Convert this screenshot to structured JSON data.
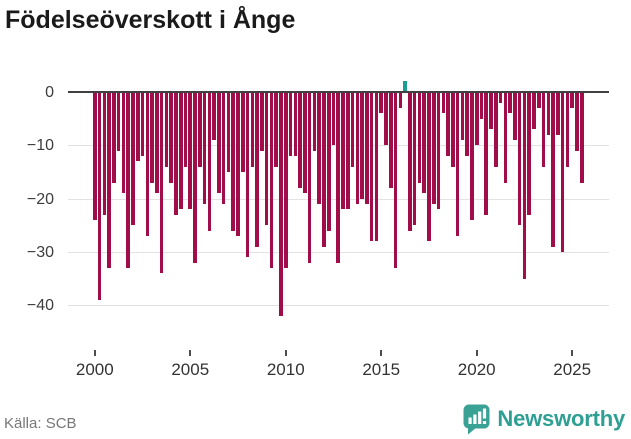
{
  "header": {
    "title": "Födelseöverskott i Ånge"
  },
  "footer": {
    "source": "Källa: SCB",
    "brand": "Newsworthy"
  },
  "colors": {
    "negative_bar": "#a00d49",
    "positive_bar": "#1a9e93",
    "logo_teal": "#3aa295",
    "brand_text": "#2d9f93",
    "gridline": "#e2e2e2",
    "zero_line": "#404040",
    "axis_text": "#3d3d3d"
  },
  "chart_data": {
    "type": "bar",
    "title": "Födelseöverskott i Ånge",
    "frequency": "quarterly",
    "start_period": "2000Q1",
    "end_period": "2025Q3",
    "xlabel": "",
    "ylabel": "",
    "grid": true,
    "ylim": [
      3.5,
      -44
    ],
    "x_ticks": [
      2000,
      2005,
      2010,
      2015,
      2020,
      2025
    ],
    "x_tick_labels": [
      "2000",
      "2005",
      "2010",
      "2015",
      "2020",
      "2025"
    ],
    "y_ticks": [
      0,
      -10,
      -20,
      -30,
      -40
    ],
    "y_tick_labels": [
      "0",
      "−10",
      "−20",
      "−30",
      "−40"
    ],
    "negative_color": "#a00d49",
    "positive_color": "#1a9e93",
    "categories": [
      "2000Q1",
      "2000Q2",
      "2000Q3",
      "2000Q4",
      "2001Q1",
      "2001Q2",
      "2001Q3",
      "2001Q4",
      "2002Q1",
      "2002Q2",
      "2002Q3",
      "2002Q4",
      "2003Q1",
      "2003Q2",
      "2003Q3",
      "2003Q4",
      "2004Q1",
      "2004Q2",
      "2004Q3",
      "2004Q4",
      "2005Q1",
      "2005Q2",
      "2005Q3",
      "2005Q4",
      "2006Q1",
      "2006Q2",
      "2006Q3",
      "2006Q4",
      "2007Q1",
      "2007Q2",
      "2007Q3",
      "2007Q4",
      "2008Q1",
      "2008Q2",
      "2008Q3",
      "2008Q4",
      "2009Q1",
      "2009Q2",
      "2009Q3",
      "2009Q4",
      "2010Q1",
      "2010Q2",
      "2010Q3",
      "2010Q4",
      "2011Q1",
      "2011Q2",
      "2011Q3",
      "2011Q4",
      "2012Q1",
      "2012Q2",
      "2012Q3",
      "2012Q4",
      "2013Q1",
      "2013Q2",
      "2013Q3",
      "2013Q4",
      "2014Q1",
      "2014Q2",
      "2014Q3",
      "2014Q4",
      "2015Q1",
      "2015Q2",
      "2015Q3",
      "2015Q4",
      "2016Q1",
      "2016Q2",
      "2016Q3",
      "2016Q4",
      "2017Q1",
      "2017Q2",
      "2017Q3",
      "2017Q4",
      "2018Q1",
      "2018Q2",
      "2018Q3",
      "2018Q4",
      "2019Q1",
      "2019Q2",
      "2019Q3",
      "2019Q4",
      "2020Q1",
      "2020Q2",
      "2020Q3",
      "2020Q4",
      "2021Q1",
      "2021Q2",
      "2021Q3",
      "2021Q4",
      "2022Q1",
      "2022Q2",
      "2022Q3",
      "2022Q4",
      "2023Q1",
      "2023Q2",
      "2023Q3",
      "2023Q4",
      "2024Q1",
      "2024Q2",
      "2024Q3",
      "2024Q4",
      "2025Q1",
      "2025Q2",
      "2025Q3"
    ],
    "values": [
      -24,
      -39,
      -23,
      -33,
      -17,
      -11,
      -19,
      -33,
      -25,
      -13,
      -12,
      -27,
      -17,
      -19,
      -34,
      -14,
      -17,
      -23,
      -22,
      -14,
      -22,
      -32,
      -14,
      -21,
      -26,
      -9,
      -19,
      -21,
      -15,
      -26,
      -27,
      -15,
      -31,
      -14,
      -29,
      -11,
      -25,
      -33,
      -14,
      -42,
      -33,
      -12,
      -12,
      -18,
      -19,
      -32,
      -11,
      -21,
      -29,
      -26,
      -10,
      -32,
      -22,
      -22,
      -14,
      -21,
      -20,
      -21,
      -28,
      -28,
      -4,
      -10,
      -18,
      -33,
      -3,
      2,
      -26,
      -25,
      -17,
      -19,
      -28,
      -21,
      -22,
      -4,
      -12,
      -14,
      -27,
      -9,
      -12,
      -24,
      -10,
      -5,
      -23,
      -7,
      -14,
      -2,
      -17,
      -4,
      -9,
      -25,
      -35,
      -23,
      -7,
      -3,
      -14,
      -8,
      -29,
      -8,
      -30,
      -14,
      -3,
      -11,
      -17
    ]
  }
}
